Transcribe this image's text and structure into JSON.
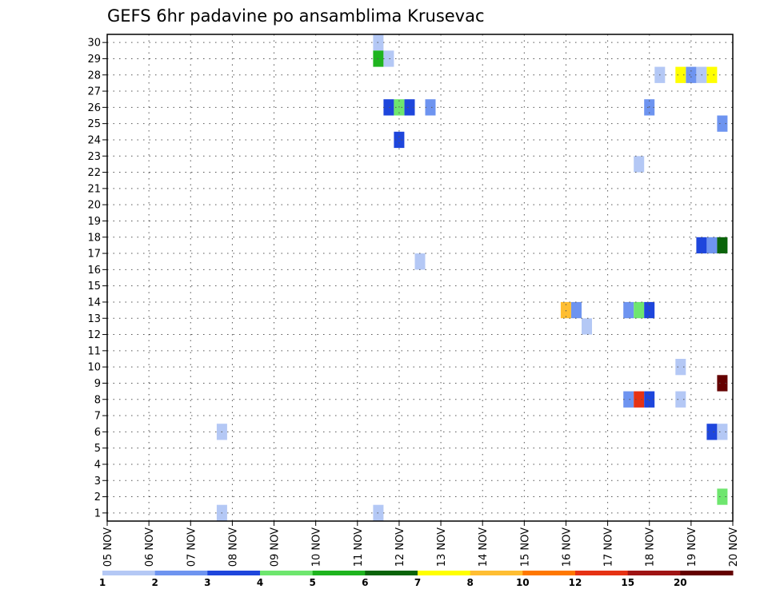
{
  "chart_data": {
    "type": "heatmap",
    "title": "GEFS 6hr padavine po ansamblima Krusevac",
    "xlabel": "",
    "ylabel": "",
    "x_ticks": [
      "05 NOV",
      "06 NOV",
      "07 NOV",
      "08 NOV",
      "09 NOV",
      "10 NOV",
      "11 NOV",
      "12 NOV",
      "13 NOV",
      "14 NOV",
      "15 NOV",
      "16 NOV",
      "17 NOV",
      "18 NOV",
      "19 NOV",
      "20 NOV"
    ],
    "y_ticks": [
      "1",
      "2",
      "3",
      "4",
      "5",
      "6",
      "7",
      "8",
      "9",
      "10",
      "11",
      "12",
      "13",
      "14",
      "15",
      "16",
      "17",
      "18",
      "19",
      "20",
      "21",
      "22",
      "23",
      "24",
      "25",
      "26",
      "27",
      "28",
      "29",
      "30"
    ],
    "xlim_days": [
      0,
      15
    ],
    "ylim": [
      0.5,
      30.5
    ],
    "grid": true,
    "legend": {
      "placement": "bottom",
      "colors": [
        "#b4c8f5",
        "#6e94f0",
        "#1e46dc",
        "#6ee66e",
        "#1eb41e",
        "#0a640a",
        "#ffff00",
        "#ffbe32",
        "#ff7800",
        "#e63214",
        "#a01414",
        "#640000"
      ],
      "labels": [
        "1",
        "2",
        "3",
        "4",
        "5",
        "6",
        "7",
        "8",
        "10",
        "12",
        "15",
        "20"
      ]
    },
    "cells": [
      {
        "day": 2.75,
        "member": 6,
        "color": "#b4c8f5"
      },
      {
        "day": 2.75,
        "member": 1,
        "color": "#b4c8f5"
      },
      {
        "day": 6.5,
        "member": 30,
        "color": "#b4c8f5"
      },
      {
        "day": 6.5,
        "member": 29,
        "color": "#1eb41e"
      },
      {
        "day": 6.75,
        "member": 29,
        "color": "#b4c8f5"
      },
      {
        "day": 6.5,
        "member": 1,
        "color": "#b4c8f5"
      },
      {
        "day": 6.75,
        "member": 26,
        "color": "#1e46dc"
      },
      {
        "day": 7.0,
        "member": 26,
        "color": "#6ee66e"
      },
      {
        "day": 7.25,
        "member": 26,
        "color": "#1e46dc"
      },
      {
        "day": 7.75,
        "member": 26,
        "color": "#6e94f0"
      },
      {
        "day": 7.0,
        "member": 24,
        "color": "#1e46dc"
      },
      {
        "day": 7.5,
        "member": 16.5,
        "color": "#b4c8f5"
      },
      {
        "day": 11.0,
        "member": 13.5,
        "color": "#ffbe32"
      },
      {
        "day": 11.25,
        "member": 13.5,
        "color": "#6e94f0"
      },
      {
        "day": 11.5,
        "member": 12.5,
        "color": "#b4c8f5"
      },
      {
        "day": 12.5,
        "member": 13.5,
        "color": "#6e94f0"
      },
      {
        "day": 12.75,
        "member": 13.5,
        "color": "#6ee66e"
      },
      {
        "day": 13.0,
        "member": 13.5,
        "color": "#1e46dc"
      },
      {
        "day": 12.5,
        "member": 8,
        "color": "#6e94f0"
      },
      {
        "day": 12.75,
        "member": 8,
        "color": "#e63214"
      },
      {
        "day": 13.0,
        "member": 8,
        "color": "#1e46dc"
      },
      {
        "day": 12.75,
        "member": 22.5,
        "color": "#b4c8f5"
      },
      {
        "day": 13.0,
        "member": 26,
        "color": "#6e94f0"
      },
      {
        "day": 13.25,
        "member": 28,
        "color": "#b4c8f5"
      },
      {
        "day": 13.75,
        "member": 28,
        "color": "#ffff00"
      },
      {
        "day": 14.0,
        "member": 28,
        "color": "#6e94f0"
      },
      {
        "day": 14.25,
        "member": 28,
        "color": "#b4c8f5"
      },
      {
        "day": 14.5,
        "member": 28,
        "color": "#ffff00"
      },
      {
        "day": 14.25,
        "member": 17.5,
        "color": "#1e46dc"
      },
      {
        "day": 14.5,
        "member": 17.5,
        "color": "#6e94f0"
      },
      {
        "day": 14.75,
        "member": 17.5,
        "color": "#0a640a"
      },
      {
        "day": 13.75,
        "member": 10,
        "color": "#b4c8f5"
      },
      {
        "day": 13.75,
        "member": 8,
        "color": "#b4c8f5"
      },
      {
        "day": 14.75,
        "member": 25,
        "color": "#6e94f0"
      },
      {
        "day": 14.75,
        "member": 9,
        "color": "#640000"
      },
      {
        "day": 14.5,
        "member": 6,
        "color": "#1e46dc"
      },
      {
        "day": 14.75,
        "member": 6,
        "color": "#b4c8f5"
      },
      {
        "day": 14.75,
        "member": 2,
        "color": "#6ee66e"
      }
    ]
  }
}
